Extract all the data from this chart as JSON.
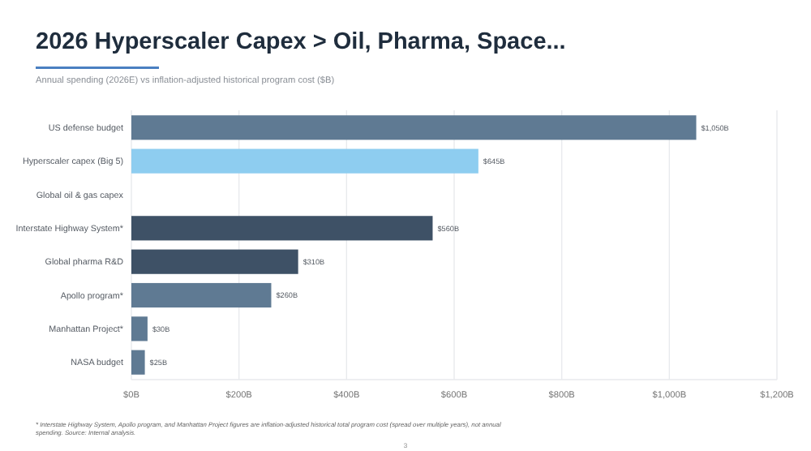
{
  "chart_data": {
    "type": "bar",
    "orientation": "horizontal",
    "title": "2026 Hyperscaler Capex > Oil, Pharma, Space...",
    "subtitle": "Annual spending (2026E) vs inflation-adjusted historical program cost ($B)",
    "categories": [
      "US defense budget",
      "Hyperscaler capex (Big 5)",
      "Global oil & gas capex",
      "Interstate Highway System*",
      "Global pharma R&D",
      "Apollo program*",
      "Manhattan Project*",
      "NASA budget"
    ],
    "values": [
      1050,
      645,
      null,
      560,
      310,
      260,
      30,
      25
    ],
    "value_labels": [
      "$1,050B",
      "$645B",
      null,
      "$560B",
      "$310B",
      "$260B",
      "$30B",
      "$25B"
    ],
    "colors": [
      "#5f7a93",
      "#8ecdf0",
      null,
      "#3e5166",
      "#3e5166",
      "#5f7a93",
      "#5f7a93",
      "#5f7a93"
    ],
    "xlim": [
      0,
      1200
    ],
    "xticks": [
      {
        "value": 0,
        "label": "$0B"
      },
      {
        "value": 200,
        "label": "$200B"
      },
      {
        "value": 400,
        "label": "$400B"
      },
      {
        "value": 600,
        "label": "$600B"
      },
      {
        "value": 800,
        "label": "$800B"
      },
      {
        "value": 1000,
        "label": "$1,000B"
      },
      {
        "value": 1200,
        "label": "$1,200B"
      }
    ],
    "grid": "x",
    "annotations": [
      "* Interstate Highway System, Apollo program, and Manhattan Project figures are inflation-adjusted historical total program cost (spread over multiple years), not annual",
      "spending. Source: Internal analysis.",
      "3"
    ]
  }
}
